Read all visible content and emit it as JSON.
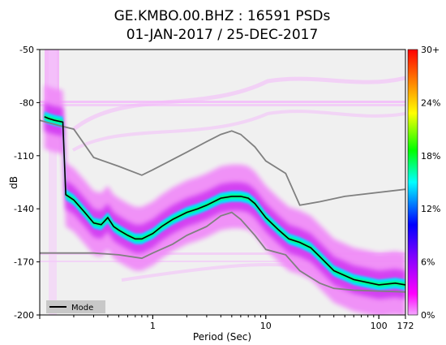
{
  "chart_data": {
    "type": "heatmap",
    "title": [
      "GE.KMBO.00.BHZ : 16591 PSDs",
      "01-JAN-2017 / 25-DEC-2017"
    ],
    "xlabel": "Period (Sec)",
    "ylabel": "dB",
    "xscale": "log",
    "xlim": [
      0.1,
      172
    ],
    "ylim": [
      -200,
      -50
    ],
    "x_ticks": [
      {
        "value": 1,
        "label": "1"
      },
      {
        "value": 10,
        "label": "10"
      },
      {
        "value": 100,
        "label": "100"
      },
      {
        "value": 172,
        "label": "172"
      }
    ],
    "y_ticks": [
      {
        "value": -50,
        "label": "-50"
      },
      {
        "value": -80,
        "label": "-80"
      },
      {
        "value": -110,
        "label": "-110"
      },
      {
        "value": -140,
        "label": "-140"
      },
      {
        "value": -170,
        "label": "-170"
      },
      {
        "value": -200,
        "label": "-200"
      }
    ],
    "colorbar": {
      "labels": [
        "30+",
        "24%",
        "18%",
        "12%",
        "6%",
        "0%"
      ],
      "colors": [
        "#ff0000",
        "#ff8000",
        "#ffff00",
        "#00ff00",
        "#00ffff",
        "#0000ff",
        "#ff00ff",
        "#f4a8ff"
      ]
    },
    "legend": {
      "entries": [
        {
          "name": "Mode",
          "color": "#000000"
        }
      ],
      "placement": "bottom-left"
    },
    "series": [
      {
        "name": "Mode",
        "x": [
          0.11,
          0.12,
          0.135,
          0.16,
          0.17,
          0.2,
          0.25,
          0.3,
          0.35,
          0.4,
          0.45,
          0.5,
          0.6,
          0.7,
          0.8,
          1.0,
          1.2,
          1.5,
          2.0,
          2.5,
          3.0,
          4.0,
          5.0,
          6.0,
          7.0,
          8.0,
          10,
          13,
          16,
          20,
          25,
          30,
          40,
          60,
          100,
          140,
          172
        ],
        "y": [
          -88,
          -89,
          -90,
          -91,
          -132,
          -135,
          -142,
          -148,
          -149,
          -145,
          -150,
          -152,
          -155,
          -157,
          -157,
          -154,
          -150,
          -146,
          -142,
          -140,
          -138,
          -134,
          -133,
          -133,
          -134,
          -137,
          -145,
          -152,
          -157,
          -159,
          -162,
          -167,
          -175,
          -180,
          -183,
          -182,
          -183
        ]
      },
      {
        "name": "",
        "x": [
          0.1,
          0.15,
          0.2,
          0.3,
          0.5,
          0.8,
          1.0,
          2.0,
          3.0,
          4.0,
          5.0,
          6.0,
          8.0,
          10,
          15,
          20,
          30,
          50,
          172
        ],
        "y": [
          -90,
          -93,
          -95,
          -111,
          -116,
          -121,
          -118,
          -108,
          -102,
          -98,
          -96,
          -98,
          -105,
          -113,
          -120,
          -138,
          -136,
          -133,
          -129
        ],
        "color": "#808080"
      },
      {
        "name": "",
        "x": [
          0.1,
          0.3,
          0.5,
          0.8,
          1.0,
          1.5,
          2.0,
          3.0,
          4.0,
          5.0,
          6.0,
          8.0,
          10,
          15,
          20,
          30,
          40,
          60,
          172
        ],
        "y": [
          -165,
          -165,
          -166,
          -168,
          -165,
          -160,
          -155,
          -150,
          -144,
          -142,
          -146,
          -155,
          -163,
          -166,
          -175,
          -182,
          -185,
          -186,
          -187
        ],
        "color": "#808080"
      }
    ]
  }
}
